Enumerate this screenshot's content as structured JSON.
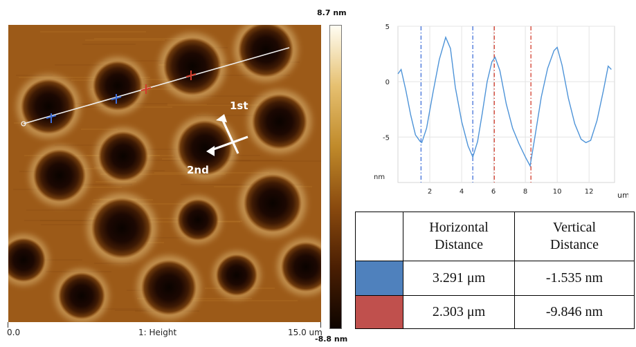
{
  "afm_image": {
    "colorbar_max": "8.7 nm",
    "colorbar_min": "-8.8 nm",
    "x_start": "0.0",
    "x_end": "15.0 um",
    "channel": "1: Height",
    "arrow_labels": {
      "first": "1st",
      "second": "2nd"
    },
    "colormap": [
      "#0d0400",
      "#4a1e02",
      "#8a4a0e",
      "#c08a2a",
      "#e6c070",
      "#fffdf3"
    ],
    "profile_line_color": "#f0f0f0",
    "marker_colors": {
      "blue": "#3f6fd8",
      "red": "#d23b2b"
    }
  },
  "chart_data": {
    "type": "line",
    "title": "",
    "xlabel": "um",
    "ylabel": "nm",
    "xlim": [
      0,
      13.6
    ],
    "ylim": [
      -9.1,
      5
    ],
    "yticks": [
      5,
      0,
      -5
    ],
    "xticks": [
      2,
      4,
      6,
      8,
      10,
      12
    ],
    "grid": true,
    "series_color": "#4d93d8",
    "series": [
      {
        "x": [
          0,
          0.2,
          0.5,
          0.8,
          1.1,
          1.4,
          1.5,
          1.8,
          2.2,
          2.6,
          3.0,
          3.3,
          3.6,
          4.0,
          4.4,
          4.7,
          5.0,
          5.3,
          5.6,
          5.9,
          6.1,
          6.4,
          6.8,
          7.2,
          7.6,
          8.0,
          8.3,
          8.6,
          9.0,
          9.4,
          9.8,
          10.0,
          10.3,
          10.7,
          11.1,
          11.5,
          11.8,
          12.1,
          12.5,
          12.9,
          13.2,
          13.4
        ],
        "values": [
          0.7,
          1.1,
          -0.8,
          -3.0,
          -4.8,
          -5.4,
          -5.5,
          -4.2,
          -1.0,
          2.0,
          4.0,
          3.0,
          -0.5,
          -3.6,
          -5.8,
          -6.8,
          -5.4,
          -2.8,
          0.0,
          1.8,
          2.2,
          1.0,
          -2.0,
          -4.2,
          -5.6,
          -6.8,
          -7.6,
          -5.0,
          -1.4,
          1.2,
          2.8,
          3.1,
          1.5,
          -1.5,
          -3.8,
          -5.2,
          -5.5,
          -5.3,
          -3.5,
          -0.8,
          1.4,
          1.1
        ]
      }
    ],
    "cursor_lines": [
      {
        "x": 1.45,
        "color": "#3f6fd8"
      },
      {
        "x": 4.7,
        "color": "#3f6fd8"
      },
      {
        "x": 6.05,
        "color": "#d23b2b"
      },
      {
        "x": 8.35,
        "color": "#d23b2b"
      }
    ]
  },
  "table": {
    "header": [
      "",
      "Horizontal\nDistance",
      "Vertical\nDistance"
    ],
    "rows": [
      {
        "swatch_color": "#4f81bd",
        "horizontal": "3.291 μm",
        "vertical": "-1.535 nm"
      },
      {
        "swatch_color": "#c0504d",
        "horizontal": "2.303 μm",
        "vertical": "-9.846 nm"
      }
    ]
  }
}
